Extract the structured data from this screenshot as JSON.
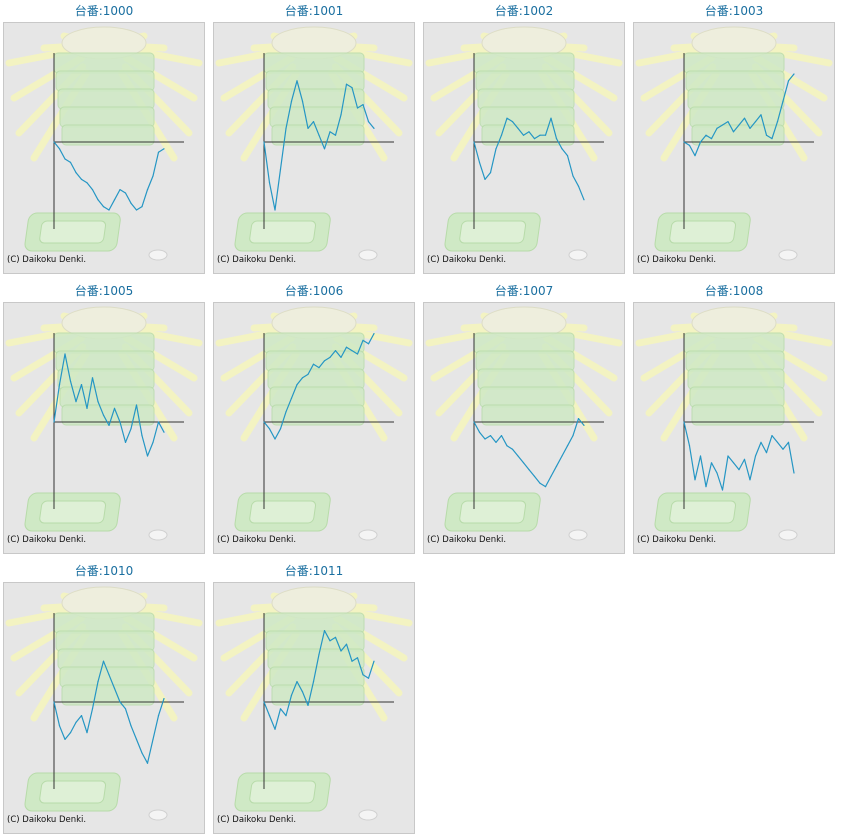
{
  "colors": {
    "title": "#1a6fa0",
    "series_line": "#2596c4",
    "axis": "#333333",
    "background": "#e6e6e6",
    "decor_rays": "#f3f3c2",
    "decor_machine": "#cfe9c5",
    "decor_machine_stroke": "#b7dba9"
  },
  "background_icon": "pachinko-machine-illustration",
  "copyright": "(C) Daikoku Denki.",
  "charts": [
    {
      "title": "台番:1000"
    },
    {
      "title": "台番:1001"
    },
    {
      "title": "台番:1002"
    },
    {
      "title": "台番:1003"
    },
    {
      "title": "台番:1005"
    },
    {
      "title": "台番:1006"
    },
    {
      "title": "台番:1007"
    },
    {
      "title": "台番:1008"
    },
    {
      "title": "台番:1010"
    },
    {
      "title": "台番:1011"
    }
  ],
  "chart_data": [
    {
      "type": "line",
      "title": "台番:1000",
      "x": [
        0,
        1,
        2,
        3,
        4,
        5,
        6,
        7,
        8,
        9,
        10,
        11,
        12,
        13,
        14,
        15,
        16,
        17,
        18,
        19,
        20
      ],
      "series": [
        {
          "values": [
            0,
            -0.1,
            -0.25,
            -0.3,
            -0.45,
            -0.55,
            -0.6,
            -0.7,
            -0.85,
            -0.95,
            -1.0,
            -0.85,
            -0.7,
            -0.75,
            -0.9,
            -1.0,
            -0.95,
            -0.7,
            -0.5,
            -0.15,
            -0.1
          ]
        }
      ]
    },
    {
      "type": "line",
      "title": "台番:1001",
      "x": [
        0,
        1,
        2,
        3,
        4,
        5,
        6,
        7,
        8,
        9,
        10,
        11,
        12,
        13,
        14,
        15,
        16,
        17,
        18,
        19,
        20
      ],
      "series": [
        {
          "values": [
            0,
            -0.6,
            -1.0,
            -0.4,
            0.2,
            0.6,
            0.9,
            0.6,
            0.2,
            0.3,
            0.1,
            -0.1,
            0.15,
            0.1,
            0.4,
            0.85,
            0.8,
            0.5,
            0.55,
            0.3,
            0.2
          ]
        }
      ]
    },
    {
      "type": "line",
      "title": "台番:1002",
      "x": [
        0,
        1,
        2,
        3,
        4,
        5,
        6,
        7,
        8,
        9,
        10,
        11,
        12,
        13,
        14,
        15,
        16,
        17,
        18,
        19,
        20
      ],
      "series": [
        {
          "values": [
            0,
            -0.3,
            -0.55,
            -0.45,
            -0.1,
            0.1,
            0.35,
            0.3,
            0.2,
            0.1,
            0.15,
            0.05,
            0.1,
            0.1,
            0.35,
            0.05,
            -0.1,
            -0.2,
            -0.5,
            -0.65,
            -0.85
          ]
        }
      ]
    },
    {
      "type": "line",
      "title": "台番:1003",
      "x": [
        0,
        1,
        2,
        3,
        4,
        5,
        6,
        7,
        8,
        9,
        10,
        11,
        12,
        13,
        14,
        15,
        16,
        17,
        18,
        19,
        20
      ],
      "series": [
        {
          "values": [
            0,
            -0.05,
            -0.2,
            0.0,
            0.1,
            0.05,
            0.2,
            0.25,
            0.3,
            0.15,
            0.25,
            0.35,
            0.2,
            0.3,
            0.4,
            0.1,
            0.05,
            0.3,
            0.6,
            0.9,
            1.0
          ]
        }
      ]
    },
    {
      "type": "line",
      "title": "台番:1005",
      "x": [
        0,
        1,
        2,
        3,
        4,
        5,
        6,
        7,
        8,
        9,
        10,
        11,
        12,
        13,
        14,
        15,
        16,
        17,
        18,
        19,
        20
      ],
      "series": [
        {
          "values": [
            0,
            0.55,
            1.0,
            0.6,
            0.3,
            0.55,
            0.2,
            0.65,
            0.3,
            0.1,
            -0.05,
            0.2,
            0.0,
            -0.3,
            -0.1,
            0.25,
            -0.2,
            -0.5,
            -0.3,
            0.0,
            -0.15
          ]
        }
      ]
    },
    {
      "type": "line",
      "title": "台番:1006",
      "x": [
        0,
        1,
        2,
        3,
        4,
        5,
        6,
        7,
        8,
        9,
        10,
        11,
        12,
        13,
        14,
        15,
        16,
        17,
        18,
        19,
        20
      ],
      "series": [
        {
          "values": [
            0,
            -0.1,
            -0.25,
            -0.1,
            0.15,
            0.35,
            0.55,
            0.65,
            0.7,
            0.85,
            0.8,
            0.9,
            0.95,
            1.05,
            0.95,
            1.1,
            1.05,
            1.0,
            1.2,
            1.15,
            1.3
          ]
        }
      ]
    },
    {
      "type": "line",
      "title": "台番:1007",
      "x": [
        0,
        1,
        2,
        3,
        4,
        5,
        6,
        7,
        8,
        9,
        10,
        11,
        12,
        13,
        14,
        15,
        16,
        17,
        18,
        19,
        20
      ],
      "series": [
        {
          "values": [
            0,
            -0.15,
            -0.25,
            -0.2,
            -0.3,
            -0.2,
            -0.35,
            -0.4,
            -0.5,
            -0.6,
            -0.7,
            -0.8,
            -0.9,
            -0.95,
            -0.8,
            -0.65,
            -0.5,
            -0.35,
            -0.2,
            0.05,
            -0.05
          ]
        }
      ]
    },
    {
      "type": "line",
      "title": "台番:1008",
      "x": [
        0,
        1,
        2,
        3,
        4,
        5,
        6,
        7,
        8,
        9,
        10,
        11,
        12,
        13,
        14,
        15,
        16,
        17,
        18,
        19,
        20
      ],
      "series": [
        {
          "values": [
            0,
            -0.35,
            -0.85,
            -0.5,
            -0.95,
            -0.6,
            -0.75,
            -1.0,
            -0.5,
            -0.6,
            -0.7,
            -0.55,
            -0.85,
            -0.5,
            -0.3,
            -0.45,
            -0.2,
            -0.3,
            -0.4,
            -0.3,
            -0.75
          ]
        }
      ]
    },
    {
      "type": "line",
      "title": "台番:1010",
      "x": [
        0,
        1,
        2,
        3,
        4,
        5,
        6,
        7,
        8,
        9,
        10,
        11,
        12,
        13,
        14,
        15,
        16,
        17,
        18,
        19,
        20
      ],
      "series": [
        {
          "values": [
            0,
            -0.35,
            -0.55,
            -0.45,
            -0.3,
            -0.2,
            -0.45,
            -0.1,
            0.3,
            0.6,
            0.4,
            0.2,
            0.0,
            -0.1,
            -0.35,
            -0.55,
            -0.75,
            -0.9,
            -0.55,
            -0.2,
            0.05
          ]
        }
      ]
    },
    {
      "type": "line",
      "title": "台番:1011",
      "x": [
        0,
        1,
        2,
        3,
        4,
        5,
        6,
        7,
        8,
        9,
        10,
        11,
        12,
        13,
        14,
        15,
        16,
        17,
        18,
        19,
        20
      ],
      "series": [
        {
          "values": [
            0,
            -0.2,
            -0.4,
            -0.1,
            -0.2,
            0.1,
            0.3,
            0.15,
            -0.05,
            0.3,
            0.7,
            1.05,
            0.9,
            0.95,
            0.75,
            0.85,
            0.6,
            0.65,
            0.4,
            0.35,
            0.6
          ]
        }
      ]
    }
  ]
}
